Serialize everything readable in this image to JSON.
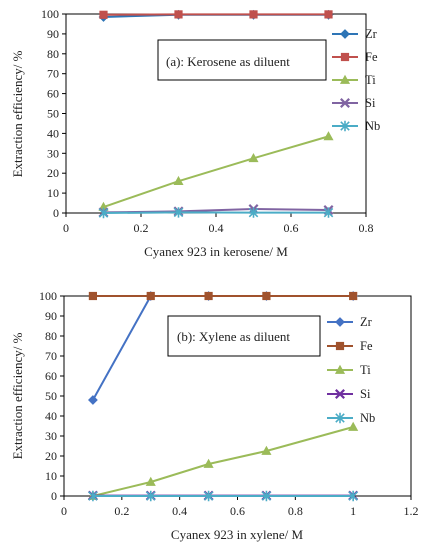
{
  "chart_data": [
    {
      "type": "line",
      "annotation": "(a): Kerosene as diluent",
      "xlabel": "Cyanex 923 in kerosene/ M",
      "ylabel": "Extraction efficiency/ %",
      "xlim": [
        0,
        0.8
      ],
      "xticks": [
        "0",
        "0.2",
        "0.4",
        "0.6",
        "0.8"
      ],
      "ylim": [
        0,
        100
      ],
      "yticks": [
        "0",
        "10",
        "20",
        "30",
        "40",
        "50",
        "60",
        "70",
        "80",
        "90",
        "100"
      ],
      "x": [
        0.1,
        0.3,
        0.5,
        0.7
      ],
      "legend_position": "right",
      "grid": false,
      "series": [
        {
          "name": "Zr",
          "color": "#2e75b6",
          "marker": "diamond",
          "values": [
            98.5,
            99.6,
            99.6,
            99.6
          ]
        },
        {
          "name": "Fe",
          "color": "#c0504d",
          "marker": "square",
          "values": [
            99.6,
            99.8,
            99.8,
            99.8
          ]
        },
        {
          "name": "Ti",
          "color": "#9bbb59",
          "marker": "triangle",
          "values": [
            3,
            16,
            27.5,
            38.5
          ]
        },
        {
          "name": "Si",
          "color": "#8064a2",
          "marker": "x",
          "values": [
            0.3,
            0.8,
            2,
            1.5
          ]
        },
        {
          "name": "Nb",
          "color": "#4bacc6",
          "marker": "star",
          "values": [
            0,
            0.3,
            0.2,
            0.2
          ]
        }
      ]
    },
    {
      "type": "line",
      "annotation": "(b): Xylene as diluent",
      "xlabel": "Cyanex 923 in xylene/ M",
      "ylabel": "Extraction efficiency/ %",
      "xlim": [
        0,
        1.2
      ],
      "xticks": [
        "0",
        "0.2",
        "0.4",
        "0.6",
        "0.8",
        "1",
        "1.2"
      ],
      "ylim": [
        0,
        100
      ],
      "yticks": [
        "0",
        "10",
        "20",
        "30",
        "40",
        "50",
        "60",
        "70",
        "80",
        "90",
        "100"
      ],
      "x": [
        0.1,
        0.3,
        0.5,
        0.7,
        1.0
      ],
      "legend_position": "right",
      "grid": false,
      "series": [
        {
          "name": "Zr",
          "color": "#4472c4",
          "marker": "diamond",
          "values": [
            48,
            100,
            100,
            100,
            100
          ]
        },
        {
          "name": "Fe",
          "color": "#a0522d",
          "marker": "square",
          "values": [
            100,
            100,
            100,
            100,
            100
          ]
        },
        {
          "name": "Ti",
          "color": "#9bbb59",
          "marker": "triangle",
          "values": [
            0,
            7,
            16,
            22.5,
            34.5
          ]
        },
        {
          "name": "Si",
          "color": "#7030a0",
          "marker": "x",
          "values": [
            0.2,
            0.2,
            0.2,
            0.2,
            0.2
          ]
        },
        {
          "name": "Nb",
          "color": "#4bacc6",
          "marker": "star",
          "values": [
            0,
            0,
            0,
            0,
            0
          ]
        }
      ]
    }
  ]
}
